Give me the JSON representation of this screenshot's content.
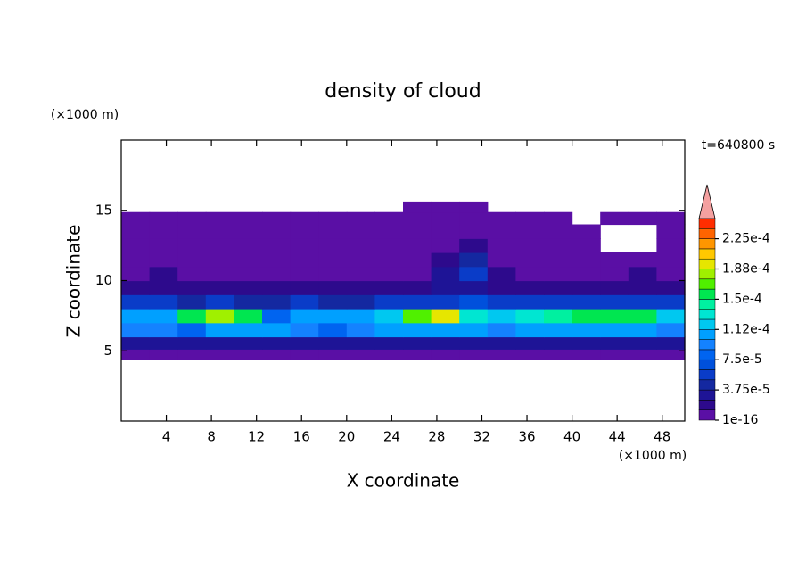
{
  "chart_data": {
    "type": "contour",
    "title": "density of cloud",
    "x_label": "X coordinate",
    "y_label": "Z coordinate",
    "x_unit": "(×1000 m)",
    "y_unit": "(×1000 m)",
    "time_label": "t=640800 s",
    "xlim": [
      0,
      50
    ],
    "ylim": [
      0,
      20
    ],
    "xticks": [
      4,
      8,
      12,
      16,
      20,
      24,
      28,
      32,
      36,
      40,
      44,
      48
    ],
    "yticks": [
      5,
      10,
      15
    ],
    "x": [
      1.25,
      3.75,
      6.25,
      8.75,
      11.25,
      13.75,
      16.25,
      18.75,
      21.25,
      23.75,
      26.25,
      28.75,
      31.25,
      33.75,
      36.25,
      38.75,
      41.25,
      43.75,
      46.25,
      48.75
    ],
    "y": [
      4.75,
      5.5,
      6.5,
      7.5,
      8.5,
      9.5,
      10.5,
      11.5,
      12.5,
      13.5,
      14.5,
      15.25
    ],
    "z": [
      [
        3e-06,
        3e-06,
        3e-06,
        3e-06,
        3e-06,
        3e-06,
        3e-06,
        3e-06,
        3e-06,
        3e-06,
        3e-06,
        3e-06,
        3e-06,
        3e-06,
        3e-06,
        3e-06,
        3e-06,
        3e-06,
        3e-06,
        3e-06
      ],
      [
        2.5e-05,
        3e-05,
        2.5e-05,
        2.5e-05,
        3e-05,
        2.5e-05,
        2.5e-05,
        3e-05,
        2.5e-05,
        2.5e-05,
        3e-05,
        3e-05,
        2.5e-05,
        2.5e-05,
        3e-05,
        2.5e-05,
        3e-05,
        2.5e-05,
        3e-05,
        2.5e-05
      ],
      [
        9e-05,
        9e-05,
        8e-05,
        0.0001,
        0.00011,
        0.00011,
        9e-05,
        8e-05,
        9e-05,
        0.0001,
        0.0001,
        0.00011,
        0.00011,
        9e-05,
        0.0001,
        0.0001,
        0.00011,
        0.00011,
        0.0001,
        9e-05
      ],
      [
        0.00011,
        0.00011,
        0.00016,
        0.00018,
        0.00015,
        8e-05,
        0.0001,
        0.00011,
        0.0001,
        0.00012,
        0.00017,
        0.00019,
        0.00013,
        0.00012,
        0.00013,
        0.00014,
        0.00015,
        0.00016,
        0.00015,
        0.00012
      ],
      [
        6e-05,
        5e-05,
        4e-05,
        5e-05,
        4.5e-05,
        4e-05,
        5e-05,
        4.5e-05,
        4e-05,
        5e-05,
        5e-05,
        6e-05,
        6.5e-05,
        6e-05,
        5e-05,
        5.5e-05,
        6e-05,
        5e-05,
        5e-05,
        6e-05
      ],
      [
        2e-05,
        2e-05,
        1.5e-05,
        2e-05,
        2e-05,
        1.5e-05,
        2e-05,
        2e-05,
        1.5e-05,
        2e-05,
        2e-05,
        2.5e-05,
        3e-05,
        2e-05,
        2e-05,
        2e-05,
        2e-05,
        1.5e-05,
        2e-05,
        2e-05
      ],
      [
        8e-06,
        1.3e-05,
        8e-06,
        6e-06,
        8e-06,
        8e-06,
        6e-06,
        8e-06,
        8e-06,
        6e-06,
        8e-06,
        2.5e-05,
        5e-05,
        1.3e-05,
        8e-06,
        8e-06,
        6e-06,
        8e-06,
        1.3e-05,
        8e-06
      ],
      [
        6e-06,
        6e-06,
        4e-06,
        4e-06,
        6e-06,
        4e-06,
        4e-06,
        6e-06,
        4e-06,
        4e-06,
        6e-06,
        1.5e-05,
        4e-05,
        8e-06,
        6e-06,
        4e-06,
        4e-06,
        6e-06,
        6e-06,
        6e-06
      ],
      [
        4e-06,
        4e-06,
        3e-06,
        3e-06,
        4e-06,
        3e-06,
        3e-06,
        4e-06,
        3e-06,
        3e-06,
        4e-06,
        6e-06,
        1.5e-05,
        4e-06,
        3e-06,
        3e-06,
        3e-06,
        null,
        null,
        4e-06
      ],
      [
        3e-06,
        3e-06,
        2e-06,
        2e-06,
        3e-06,
        2e-06,
        2e-06,
        3e-06,
        2e-06,
        2e-06,
        3e-06,
        3e-06,
        4e-06,
        3e-06,
        2e-06,
        2e-06,
        2e-06,
        null,
        null,
        3e-06
      ],
      [
        2e-06,
        2e-06,
        2e-06,
        2e-06,
        2e-06,
        2e-06,
        2e-06,
        2e-06,
        2e-06,
        2e-06,
        2e-06,
        2e-06,
        2e-06,
        2e-06,
        2e-06,
        2e-06,
        null,
        2e-06,
        2e-06,
        2e-06
      ],
      [
        null,
        null,
        null,
        null,
        null,
        null,
        null,
        null,
        null,
        null,
        2e-06,
        2e-06,
        2e-06,
        null,
        null,
        null,
        null,
        null,
        null,
        null
      ]
    ],
    "colorbar": {
      "levels": [
        1e-16,
        1.25e-05,
        2.5e-05,
        3.75e-05,
        5e-05,
        6.25e-05,
        7.5e-05,
        8.75e-05,
        0.0001,
        0.0001125,
        0.000125,
        0.0001375,
        0.00015,
        0.0001625,
        0.000175,
        0.0001875,
        0.0002,
        0.0002125,
        0.000225,
        0.0002375,
        0.00025
      ],
      "colors": [
        "#5a0fa5",
        "#2d0a8c",
        "#1e1496",
        "#1428a0",
        "#0a3cc8",
        "#0050dc",
        "#0064f0",
        "#1482ff",
        "#00a0ff",
        "#00c8f0",
        "#00e6d2",
        "#00f0a0",
        "#00e650",
        "#50f000",
        "#a0f000",
        "#e6e600",
        "#ffc800",
        "#ff9600",
        "#ff6400",
        "#ff2d00"
      ],
      "extend_color": "#f4a0a0",
      "ticks": [
        1e-16,
        {
          "value": 3.75e-05,
          "label": "3.75e-5"
        },
        {
          "value": 7.5e-05,
          "label": "7.5e-5"
        },
        {
          "value": 0.0001125,
          "label": "1.12e-4"
        },
        {
          "value": 0.00015,
          "label": "1.5e-4"
        },
        {
          "value": 0.0001875,
          "label": "1.88e-4"
        },
        {
          "value": 0.000225,
          "label": "2.25e-4"
        }
      ]
    }
  }
}
